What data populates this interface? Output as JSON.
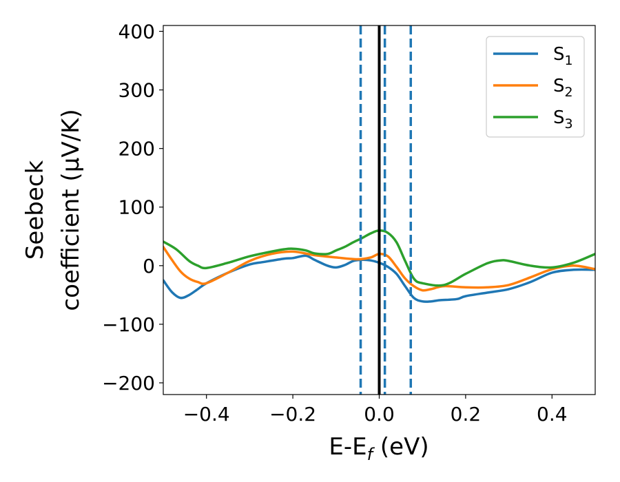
{
  "chart_data": {
    "type": "line",
    "title": "",
    "xlabel": {
      "main": "E-E",
      "sub": "f",
      "unit": " (eV)"
    },
    "ylabel": {
      "line1": "Seebeck",
      "line2": "coefficient  (μV/K)"
    },
    "xlim": [
      -0.5,
      0.5
    ],
    "ylim": [
      -220,
      410
    ],
    "xticks": [
      -0.4,
      -0.2,
      0.0,
      0.2,
      0.4
    ],
    "xtick_labels": [
      "−0.4",
      "−0.2",
      "0.0",
      "0.2",
      "0.4"
    ],
    "yticks": [
      -200,
      -100,
      0,
      100,
      200,
      300,
      400
    ],
    "ytick_labels": [
      "−200",
      "−100",
      "0",
      "100",
      "200",
      "300",
      "400"
    ],
    "grid": false,
    "legend_position": "top-right",
    "vertical_lines": [
      {
        "x": -0.043,
        "style": "dashed",
        "color": "#1f77b4"
      },
      {
        "x": 0.0,
        "style": "solid",
        "color": "#000000"
      },
      {
        "x": 0.013,
        "style": "dashed",
        "color": "#1f77b4"
      },
      {
        "x": 0.073,
        "style": "dashed",
        "color": "#1f77b4"
      }
    ],
    "series": [
      {
        "name": "S",
        "sub": "1",
        "color": "#1f77b4",
        "x": [
          -0.5,
          -0.48,
          -0.46,
          -0.44,
          -0.42,
          -0.4,
          -0.35,
          -0.3,
          -0.27,
          -0.22,
          -0.2,
          -0.17,
          -0.15,
          -0.12,
          -0.1,
          -0.08,
          -0.06,
          -0.04,
          -0.02,
          0.0,
          0.02,
          0.04,
          0.06,
          0.08,
          0.1,
          0.12,
          0.14,
          0.18,
          0.2,
          0.25,
          0.3,
          0.35,
          0.4,
          0.45,
          0.5
        ],
        "y": [
          -25,
          -45,
          -55,
          -50,
          -40,
          -30,
          -12,
          2,
          6,
          12,
          13,
          17,
          10,
          0,
          -3,
          1,
          8,
          10,
          9,
          5,
          -2,
          -14,
          -35,
          -55,
          -61,
          -61,
          -59,
          -57,
          -52,
          -46,
          -40,
          -28,
          -12,
          -7,
          -7
        ]
      },
      {
        "name": "S",
        "sub": "2",
        "color": "#ff7f0e",
        "x": [
          -0.5,
          -0.48,
          -0.46,
          -0.44,
          -0.42,
          -0.4,
          -0.35,
          -0.3,
          -0.25,
          -0.2,
          -0.15,
          -0.1,
          -0.05,
          -0.02,
          0.0,
          0.02,
          0.04,
          0.06,
          0.08,
          0.1,
          0.12,
          0.15,
          0.2,
          0.25,
          0.3,
          0.35,
          0.4,
          0.45,
          0.5
        ],
        "y": [
          32,
          10,
          -10,
          -22,
          -28,
          -30,
          -12,
          8,
          20,
          24,
          18,
          14,
          11,
          14,
          20,
          16,
          -2,
          -22,
          -35,
          -42,
          -40,
          -35,
          -37,
          -37,
          -33,
          -20,
          -6,
          0,
          -6
        ]
      },
      {
        "name": "S",
        "sub": "3",
        "color": "#2ca02c",
        "x": [
          -0.5,
          -0.47,
          -0.44,
          -0.42,
          -0.4,
          -0.35,
          -0.3,
          -0.25,
          -0.22,
          -0.2,
          -0.17,
          -0.15,
          -0.12,
          -0.1,
          -0.08,
          -0.06,
          -0.04,
          -0.02,
          0.0,
          0.02,
          0.04,
          0.06,
          0.08,
          0.1,
          0.15,
          0.2,
          0.25,
          0.28,
          0.3,
          0.35,
          0.4,
          0.45,
          0.5
        ],
        "y": [
          41,
          28,
          8,
          0,
          -4,
          5,
          16,
          24,
          28,
          29,
          26,
          21,
          20,
          26,
          32,
          40,
          47,
          55,
          60,
          56,
          40,
          8,
          -22,
          -30,
          -33,
          -14,
          4,
          9,
          8,
          0,
          -3,
          5,
          20
        ]
      }
    ]
  }
}
